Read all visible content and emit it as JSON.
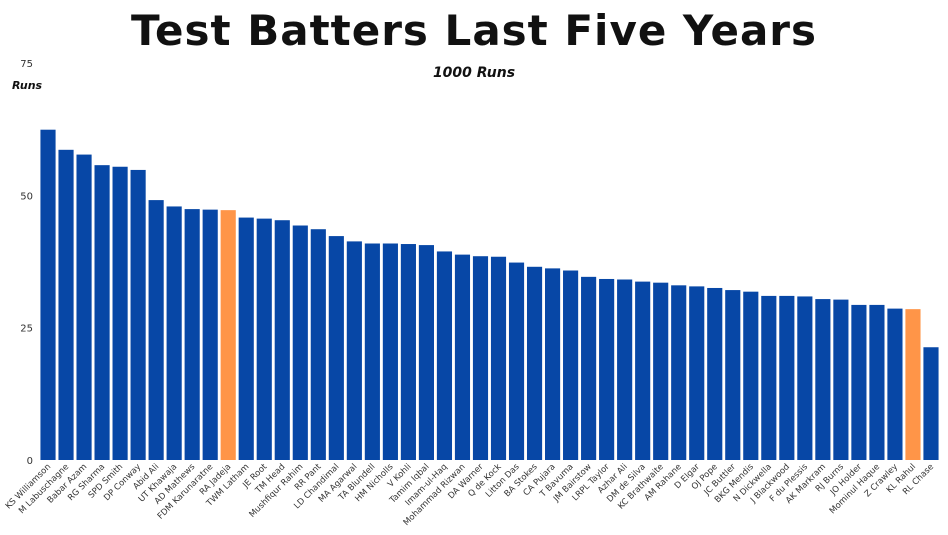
{
  "chart_data": {
    "type": "bar",
    "title": "Test Batters Last Five Years",
    "subtitle": "1000 Runs",
    "ylabel": "Runs",
    "xlabel": "",
    "ylim": [
      0,
      75
    ],
    "yticks": [
      0,
      25,
      50,
      75
    ],
    "grid": false,
    "bar_color": "#0747A6",
    "highlight_color": "#FF9548",
    "categories": [
      "KS Williamson",
      "M Labuschagne",
      "Babar Azam",
      "RG Sharma",
      "SPD Smith",
      "DP Conway",
      "Abid Ali",
      "UT Khawaja",
      "AD Mathews",
      "FDM Karunaratne",
      "RA Jadeja",
      "TWM Latham",
      "JE Root",
      "TM Head",
      "Mushfiqur Rahim",
      "RR Pant",
      "LD Chandimal",
      "MA Agarwal",
      "TA Blundell",
      "HM Nicholls",
      "V Kohli",
      "Tamim Iqbal",
      "Imam-ul-Haq",
      "Mohammad Rizwan",
      "DA Warner",
      "Q de Kock",
      "Litton Das",
      "BA Stokes",
      "CA Pujara",
      "T Bavuma",
      "JM Bairstow",
      "LRPL Taylor",
      "Azhar Ali",
      "DM de Silva",
      "KC Brathwaite",
      "AM Rahane",
      "D Elgar",
      "OJ Pope",
      "JC Buttler",
      "BKG Mendis",
      "N Dickwella",
      "J Blackwood",
      "F du Plessis",
      "AK Markram",
      "RJ Burns",
      "JO Holder",
      "Mominul Haque",
      "Z Crawley",
      "KL Rahul",
      "RL Chase"
    ],
    "values": [
      62.4,
      58.6,
      57.7,
      55.7,
      55.4,
      54.8,
      49.1,
      47.9,
      47.4,
      47.3,
      47.2,
      45.8,
      45.6,
      45.3,
      44.3,
      43.6,
      42.3,
      41.3,
      40.9,
      40.9,
      40.8,
      40.6,
      39.4,
      38.8,
      38.5,
      38.4,
      37.3,
      36.5,
      36.2,
      35.8,
      34.6,
      34.2,
      34.1,
      33.7,
      33.5,
      33.0,
      32.8,
      32.5,
      32.1,
      31.8,
      31.0,
      31.0,
      30.9,
      30.4,
      30.3,
      29.3,
      29.3,
      28.6,
      28.5,
      21.3
    ],
    "highlighted": [
      "RA Jadeja",
      "KL Rahul"
    ]
  }
}
